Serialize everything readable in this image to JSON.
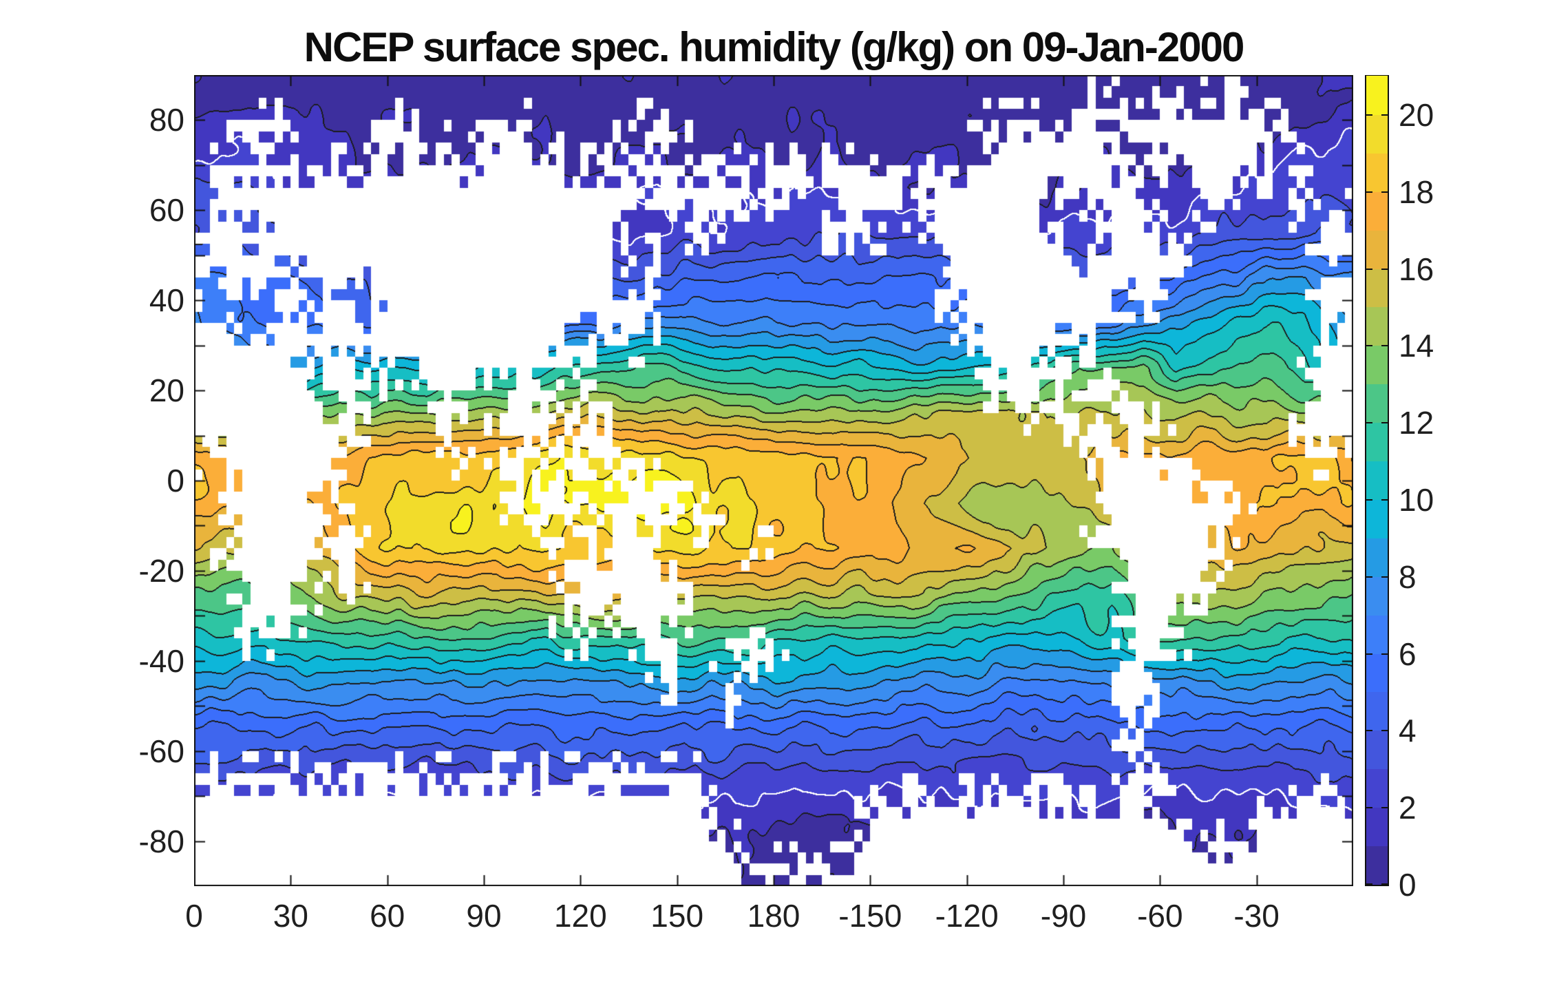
{
  "title": "NCEP surface spec. humidity (g/kg) on 09-Jan-2000",
  "figure": {
    "background": "#ffffff",
    "axis_color": "#111111",
    "tick_label_color": "#1f1f1f",
    "land_color": "#ffffff"
  },
  "chart_data": {
    "type": "heatmap",
    "subtype": "filled-contour-world-map",
    "title": "NCEP surface spec. humidity (g/kg) on 09-Jan-2000",
    "units": "g/kg",
    "legend_position": "right-colorbar",
    "grid_on": false,
    "x_axis": {
      "label": "",
      "range": [
        0,
        360
      ],
      "tick_values": [
        0,
        30,
        60,
        90,
        120,
        150,
        180,
        210,
        240,
        270,
        300,
        330
      ],
      "tick_labels": [
        "0",
        "30",
        "60",
        "90",
        "120",
        "150",
        "180",
        "-150",
        "-120",
        "-90",
        "-60",
        "-30"
      ]
    },
    "y_axis": {
      "label": "",
      "range": [
        -90,
        90
      ],
      "tick_values": [
        -80,
        -70,
        -60,
        -50,
        -40,
        -30,
        -20,
        -10,
        0,
        10,
        20,
        30,
        40,
        50,
        60,
        70,
        80
      ],
      "labeled_tick_values": [
        -80,
        -60,
        -40,
        -20,
        0,
        20,
        40,
        60,
        80
      ],
      "labeled_tick_labels": [
        "-80",
        "-60",
        "-40",
        "-20",
        "0",
        "20",
        "40",
        "60",
        "80"
      ]
    },
    "colorbar": {
      "range": [
        0,
        21
      ],
      "tick_values": [
        0,
        2,
        4,
        6,
        8,
        10,
        12,
        14,
        16,
        18,
        20
      ],
      "tick_labels": [
        "0",
        "2",
        "4",
        "6",
        "8",
        "10",
        "12",
        "14",
        "16",
        "18",
        "20"
      ],
      "band_colors": [
        "#3d2f9e",
        "#4237c0",
        "#4444d0",
        "#4356dd",
        "#3f66ee",
        "#3b6efb",
        "#3d7ff9",
        "#3a8df0",
        "#259be4",
        "#0db6d9",
        "#16bec4",
        "#2ec5a3",
        "#4cc687",
        "#79ca67",
        "#a7c656",
        "#cdbe45",
        "#e9b43c",
        "#fbae39",
        "#f8c630",
        "#f2dc2b",
        "#f8f21e"
      ]
    },
    "contour": {
      "interval": 1,
      "levels": [
        1,
        2,
        3,
        4,
        5,
        6,
        7,
        8,
        9,
        10,
        11,
        12,
        13,
        14,
        15,
        16,
        17,
        18,
        19,
        20
      ],
      "line_color": "#1c1c1c",
      "highlight_level": 2,
      "highlight_color": "#ffffff"
    },
    "grid": {
      "comment": "specific humidity (g/kg) at cell centers; lon 5..355 step 10 (36 cols), lat 85..-85 step -10 (18 rows)",
      "lon_start": 5,
      "lon_step": 10,
      "lat_start": 85,
      "lat_step": -10,
      "values": [
        [
          0.8,
          0.7,
          0.6,
          0.5,
          0.4,
          0.4,
          0.4,
          0.4,
          0.3,
          0.3,
          0.3,
          0.3,
          0.3,
          0.3,
          0.3,
          0.3,
          0.4,
          0.4,
          0.4,
          0.4,
          0.4,
          0.4,
          0.3,
          0.3,
          0.3,
          0.3,
          0.3,
          0.3,
          0.4,
          0.4,
          0.4,
          0.4,
          0.4,
          0.5,
          0.6,
          0.9
        ],
        [
          2.2,
          2.0,
          1.8,
          1.4,
          1.1,
          0.9,
          0.8,
          0.8,
          0.7,
          0.7,
          0.7,
          0.7,
          0.7,
          0.7,
          0.8,
          0.8,
          0.8,
          0.8,
          0.8,
          0.8,
          0.7,
          0.7,
          0.6,
          0.6,
          0.5,
          0.5,
          0.6,
          0.6,
          0.7,
          0.7,
          0.8,
          0.8,
          0.9,
          1.1,
          1.8,
          2.1
        ],
        [
          2.9,
          2.7,
          2.3,
          2.0,
          1.7,
          1.5,
          1.3,
          1.2,
          1.2,
          1.2,
          1.2,
          1.2,
          1.3,
          1.4,
          1.5,
          1.6,
          1.7,
          1.8,
          1.8,
          1.7,
          1.5,
          1.3,
          1.2,
          1.1,
          1.0,
          1.0,
          1.0,
          1.0,
          1.2,
          1.4,
          1.5,
          1.7,
          1.9,
          2.2,
          2.5,
          2.8
        ],
        [
          3.6,
          3.4,
          3.0,
          2.6,
          2.3,
          2.2,
          2.2,
          2.2,
          2.2,
          2.2,
          2.2,
          2.2,
          2.2,
          2.1,
          2.0,
          2.2,
          2.6,
          2.9,
          3.1,
          3.2,
          3.2,
          3.1,
          3.0,
          2.8,
          2.5,
          2.2,
          1.9,
          2.0,
          2.2,
          2.4,
          2.6,
          2.9,
          3.2,
          3.4,
          3.6,
          3.7
        ],
        [
          6.5,
          5.5,
          5.0,
          4.5,
          4.0,
          3.6,
          3.4,
          3.3,
          3.3,
          3.4,
          3.5,
          3.6,
          3.8,
          4.0,
          4.2,
          4.4,
          4.5,
          4.6,
          4.7,
          4.8,
          5.0,
          5.2,
          5.3,
          5.0,
          4.5,
          4.0,
          3.8,
          3.6,
          4.0,
          4.8,
          5.2,
          6.2,
          7.2,
          8.0,
          8.2,
          7.5
        ],
        [
          6.8,
          6.2,
          5.8,
          5.5,
          5.2,
          5.0,
          5.0,
          5.0,
          5.0,
          5.2,
          5.4,
          5.6,
          6.0,
          6.8,
          7.5,
          7.3,
          7.0,
          6.8,
          6.6,
          6.5,
          6.5,
          6.6,
          6.8,
          7.0,
          6.5,
          6.0,
          5.6,
          5.5,
          6.5,
          8.0,
          9.0,
          9.8,
          10.2,
          10.5,
          10.0,
          8.5
        ],
        [
          9.0,
          8.5,
          8.2,
          9.0,
          10.0,
          10.0,
          10.0,
          9.5,
          9.5,
          10.0,
          10.5,
          11.0,
          11.5,
          12.0,
          12.0,
          11.5,
          11.0,
          10.8,
          10.5,
          10.2,
          10.0,
          9.8,
          9.5,
          9.5,
          10.0,
          10.5,
          11.5,
          13.0,
          13.2,
          13.0,
          11.0,
          12.0,
          12.5,
          12.3,
          11.0,
          9.8
        ],
        [
          13.5,
          13.0,
          12.5,
          13.0,
          14.5,
          14.0,
          13.8,
          13.8,
          14.2,
          14.5,
          15.0,
          15.3,
          15.5,
          15.5,
          15.3,
          15.0,
          14.8,
          14.5,
          14.3,
          14.2,
          14.2,
          14.3,
          14.5,
          15.0,
          15.2,
          15.3,
          15.0,
          15.2,
          15.0,
          14.8,
          14.8,
          14.8,
          14.5,
          14.5,
          14.2,
          13.8
        ],
        [
          17.8,
          17.5,
          17.2,
          17.0,
          17.5,
          18.0,
          18.3,
          18.5,
          18.5,
          19.0,
          19.5,
          19.8,
          20.0,
          19.8,
          19.5,
          19.2,
          18.8,
          18.5,
          18.2,
          18.0,
          17.8,
          17.5,
          17.0,
          16.2,
          15.6,
          15.4,
          15.6,
          16.2,
          17.0,
          17.3,
          17.5,
          17.5,
          17.8,
          18.2,
          18.3,
          18.0
        ],
        [
          17.5,
          17.0,
          16.8,
          17.0,
          18.0,
          18.8,
          19.2,
          19.5,
          19.8,
          20.0,
          20.3,
          20.5,
          20.8,
          21.0,
          20.5,
          20.0,
          19.3,
          18.8,
          18.5,
          18.0,
          17.5,
          17.0,
          16.5,
          15.5,
          14.3,
          14.0,
          14.3,
          15.2,
          16.0,
          17.0,
          17.5,
          17.6,
          17.8,
          18.0,
          17.8,
          17.6
        ],
        [
          15.5,
          15.0,
          15.2,
          16.0,
          17.5,
          18.5,
          19.0,
          19.5,
          19.5,
          19.3,
          19.0,
          18.5,
          18.2,
          18.5,
          18.8,
          19.0,
          18.8,
          18.5,
          18.2,
          18.0,
          17.8,
          17.5,
          17.3,
          17.0,
          16.5,
          15.8,
          15.0,
          14.0,
          13.5,
          15.0,
          16.5,
          17.0,
          16.8,
          16.5,
          16.2,
          15.8
        ],
        [
          12.5,
          12.0,
          12.8,
          14.0,
          15.0,
          15.5,
          15.8,
          16.0,
          16.0,
          15.8,
          16.0,
          16.3,
          16.5,
          16.0,
          15.5,
          15.3,
          15.5,
          15.5,
          15.3,
          15.0,
          14.8,
          15.2,
          15.0,
          14.5,
          13.5,
          12.8,
          12.0,
          11.5,
          11.8,
          13.5,
          14.8,
          15.0,
          14.5,
          14.0,
          13.5,
          13.0
        ],
        [
          10.8,
          10.5,
          10.8,
          11.2,
          11.5,
          11.8,
          12.0,
          12.0,
          12.0,
          11.8,
          11.5,
          11.5,
          11.5,
          11.8,
          12.0,
          12.2,
          12.0,
          11.8,
          11.5,
          11.2,
          11.0,
          10.8,
          10.5,
          10.3,
          10.0,
          9.8,
          9.8,
          10.0,
          10.8,
          11.8,
          12.0,
          11.8,
          11.5,
          11.2,
          11.0,
          10.9
        ],
        [
          7.8,
          7.8,
          7.9,
          8.0,
          8.0,
          8.0,
          8.0,
          8.0,
          7.9,
          7.8,
          7.8,
          7.8,
          7.9,
          8.0,
          8.2,
          8.3,
          8.4,
          8.5,
          8.4,
          8.2,
          8.0,
          7.8,
          7.6,
          7.4,
          7.2,
          7.0,
          7.0,
          7.0,
          7.2,
          7.6,
          7.9,
          8.0,
          8.0,
          7.9,
          7.8,
          7.8
        ],
        [
          5.0,
          5.0,
          5.0,
          5.0,
          5.0,
          5.0,
          4.9,
          4.8,
          4.8,
          4.8,
          4.9,
          5.0,
          5.0,
          5.1,
          5.2,
          5.2,
          5.2,
          5.1,
          5.0,
          4.9,
          4.8,
          4.7,
          4.6,
          4.5,
          4.4,
          4.4,
          4.5,
          4.5,
          4.6,
          4.7,
          4.8,
          4.9,
          5.0,
          5.0,
          5.0,
          5.0
        ],
        [
          3.0,
          3.0,
          3.0,
          2.9,
          2.8,
          2.8,
          2.8,
          2.8,
          2.9,
          3.0,
          3.0,
          3.0,
          3.0,
          3.0,
          3.0,
          3.0,
          2.9,
          2.8,
          2.7,
          2.6,
          2.6,
          2.7,
          2.8,
          2.9,
          3.0,
          3.0,
          3.0,
          2.9,
          2.8,
          2.6,
          2.4,
          2.4,
          2.5,
          2.7,
          2.9,
          3.0
        ],
        [
          1.6,
          1.6,
          1.5,
          1.5,
          1.5,
          1.5,
          1.5,
          1.5,
          1.5,
          1.5,
          1.5,
          1.5,
          1.5,
          1.5,
          1.5,
          1.5,
          1.3,
          1.1,
          1.1,
          1.1,
          1.2,
          1.3,
          1.5,
          1.5,
          1.5,
          1.5,
          1.5,
          1.5,
          1.4,
          1.2,
          1.1,
          1.1,
          1.2,
          1.4,
          1.5,
          1.6
        ],
        [
          0.6,
          0.6,
          0.6,
          0.6,
          0.6,
          0.6,
          0.6,
          0.6,
          0.6,
          0.6,
          0.6,
          0.6,
          0.6,
          0.6,
          0.6,
          0.6,
          0.6,
          0.6,
          0.6,
          0.6,
          0.6,
          0.6,
          0.6,
          0.6,
          0.6,
          0.6,
          0.6,
          0.6,
          0.6,
          0.6,
          0.6,
          0.6,
          0.6,
          0.6,
          0.6,
          0.6
        ]
      ]
    },
    "land_mask": {
      "comment": "1 = land (masked white); 5-degree cells; col = lon/5 (0..71), row from lat 90 down to -90",
      "cell_deg": 5,
      "rows": [
        "000000000000000000000000000000000000000000000000000000000000000000000000",
        "000000000000000000000000000000000000000000000000000000011111111111000000",
        "001111000001110000111000000111000000000000000000011111111011111111110000",
        "000000000001011100111110000000000000000000000000011111111001111111100000",
        "011111111111111111111111111111111111110111110111111111111110001111101000",
        "011111111111111111111111111111111111000011110111111110001110001100001000",
        "011011111111111111111111111000011000000111100111111110001111000000000011",
        "111111111111111111111111111010010000000000000011111111001111100000000011",
        "111111111111111111111111111010000000000000000001111111111111100000000001",
        "101110001101111111111111110010000000000000000001111111111111000000000011",
        "000001111101111111111111111100000000000000000001111111111000000000000011",
        "111111111111111111111111001100000000000000000000111111110000000000000011",
        "111111101101111111111111100000000000000000000000011110010000000000000111",
        "111111101111001111011100000000000000000000000000011110011000000000000111",
        "111111110110000110011100100000000000000000000000000111000100000000000111",
        "111111111100000100011100100000000000000000000000000000110011000000001111",
        "111111111100000010001000110000000000000000000000000000011111000000000111",
        "001111111000000000011011100000000000000000000000000000001111110000000000",
        "001111110000000000011010101111000000000000000000000000001111111100000000",
        "001111110000000000000111011111010000000000000000000000001111111110000000",
        "001111110100000000000000001010000000000000000000000000001111111100000000",
        "001111110100000000000001111110000001000000000000000000000111111100000000",
        "000111100100000000000001111111000000000000000000000000000011111000000000",
        "000111100000000000000001111111100000000000000000000000000011110000000000",
        "000111000000000000000001100111000000000000000000000000000011100000000000",
        "000000000000000000000000000011000011000000000000000000000011100000000000",
        "000000000000000000000000000001000110000000000000000000000111000000000000",
        "000000000000000000000000000000000100000000000000000000000110000000000000",
        "000000000000000000000000000000000000000000000000000000000110000000000000",
        "000000000000000000000000000000000000000000000000000000000000000000000000",
        "000000000000000000000000000000000000000000000000000000000001000000000000",
        "111111111111111111111111111111110000000000000000000000000011000000000000",
        "111111111111111111111111111111110000000000111111111111111111000000001111",
        "111111111111111111111111111111111000000001111111111111111111100000111111",
        "111111111111111111111111111111111100000001111111111111111111111111111111",
        "111111111111111111111111111111111111111111111111111111111111111111111111"
      ]
    }
  }
}
